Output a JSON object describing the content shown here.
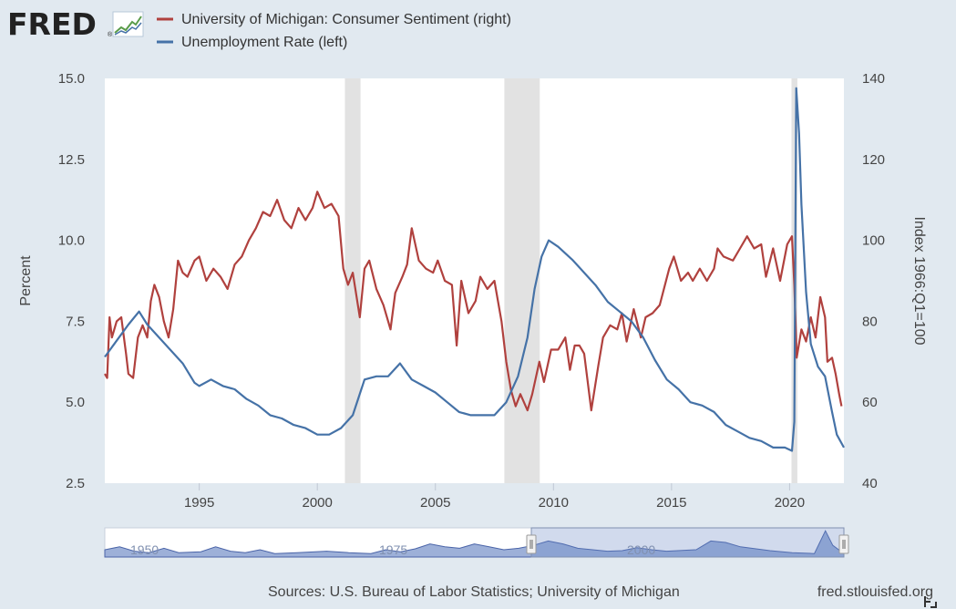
{
  "brand": {
    "name": "FRED",
    "registered": "®"
  },
  "legend": [
    {
      "label": "University of Michigan: Consumer Sentiment (right)",
      "color": "#b0413e"
    },
    {
      "label": "Unemployment Rate (left)",
      "color": "#4572a7"
    }
  ],
  "footer": {
    "sources": "Sources: U.S. Bureau of Labor Statistics; University of Michigan",
    "site": "fred.stlouisfed.org"
  },
  "navigator": {
    "labels": [
      "1950",
      "1975",
      "2000"
    ]
  },
  "chart_data": {
    "type": "line",
    "title": "",
    "x_range": [
      1991.0,
      2022.3
    ],
    "x_ticks": [
      "1995",
      "2000",
      "2005",
      "2010",
      "2015",
      "2020"
    ],
    "y_left": {
      "label": "Percent",
      "range": [
        2.5,
        15.0
      ],
      "ticks": [
        "2.5",
        "5.0",
        "7.5",
        "10.0",
        "12.5",
        "15.0"
      ]
    },
    "y_right": {
      "label": "Index 1966:Q1=100",
      "range": [
        40,
        140
      ],
      "ticks": [
        "40",
        "60",
        "80",
        "100",
        "120",
        "140"
      ]
    },
    "grid": false,
    "legend_position": "top-left",
    "recessions": [
      [
        2001.17,
        2001.83
      ],
      [
        2007.92,
        2009.42
      ],
      [
        2020.08,
        2020.33
      ]
    ],
    "series": [
      {
        "name": "University of Michigan: Consumer Sentiment (right)",
        "axis": "right",
        "color": "#b0413e",
        "points": [
          [
            1991.0,
            67
          ],
          [
            1991.1,
            66
          ],
          [
            1991.2,
            81
          ],
          [
            1991.3,
            76
          ],
          [
            1991.5,
            80
          ],
          [
            1991.7,
            81
          ],
          [
            1991.9,
            72
          ],
          [
            1992.0,
            67
          ],
          [
            1992.2,
            66
          ],
          [
            1992.4,
            76
          ],
          [
            1992.6,
            79
          ],
          [
            1992.8,
            76
          ],
          [
            1992.95,
            85
          ],
          [
            1993.1,
            89
          ],
          [
            1993.3,
            86
          ],
          [
            1993.5,
            80
          ],
          [
            1993.7,
            76
          ],
          [
            1993.9,
            83
          ],
          [
            1994.1,
            95
          ],
          [
            1994.3,
            92
          ],
          [
            1994.5,
            91
          ],
          [
            1994.8,
            95
          ],
          [
            1995.0,
            96
          ],
          [
            1995.3,
            90
          ],
          [
            1995.6,
            93
          ],
          [
            1995.9,
            91
          ],
          [
            1996.2,
            88
          ],
          [
            1996.5,
            94
          ],
          [
            1996.8,
            96
          ],
          [
            1997.1,
            100
          ],
          [
            1997.4,
            103
          ],
          [
            1997.7,
            107
          ],
          [
            1998.0,
            106
          ],
          [
            1998.3,
            110
          ],
          [
            1998.6,
            105
          ],
          [
            1998.9,
            103
          ],
          [
            1999.2,
            108
          ],
          [
            1999.5,
            105
          ],
          [
            1999.8,
            108
          ],
          [
            2000.0,
            112
          ],
          [
            2000.3,
            108
          ],
          [
            2000.6,
            109
          ],
          [
            2000.9,
            106
          ],
          [
            2001.1,
            93
          ],
          [
            2001.3,
            89
          ],
          [
            2001.5,
            92
          ],
          [
            2001.8,
            81
          ],
          [
            2002.0,
            93
          ],
          [
            2002.2,
            95
          ],
          [
            2002.5,
            88
          ],
          [
            2002.8,
            84
          ],
          [
            2003.1,
            78
          ],
          [
            2003.3,
            87
          ],
          [
            2003.6,
            91
          ],
          [
            2003.8,
            94
          ],
          [
            2004.0,
            103
          ],
          [
            2004.3,
            95
          ],
          [
            2004.6,
            93
          ],
          [
            2004.9,
            92
          ],
          [
            2005.1,
            95
          ],
          [
            2005.4,
            90
          ],
          [
            2005.7,
            89
          ],
          [
            2005.9,
            74
          ],
          [
            2006.1,
            90
          ],
          [
            2006.4,
            82
          ],
          [
            2006.7,
            85
          ],
          [
            2006.9,
            91
          ],
          [
            2007.2,
            88
          ],
          [
            2007.5,
            90
          ],
          [
            2007.8,
            80
          ],
          [
            2008.0,
            70
          ],
          [
            2008.2,
            63
          ],
          [
            2008.4,
            59
          ],
          [
            2008.6,
            62
          ],
          [
            2008.9,
            58
          ],
          [
            2009.1,
            62
          ],
          [
            2009.4,
            70
          ],
          [
            2009.6,
            65
          ],
          [
            2009.9,
            73
          ],
          [
            2010.2,
            73
          ],
          [
            2010.5,
            76
          ],
          [
            2010.7,
            68
          ],
          [
            2010.9,
            74
          ],
          [
            2011.1,
            74
          ],
          [
            2011.3,
            72
          ],
          [
            2011.6,
            58
          ],
          [
            2011.9,
            69
          ],
          [
            2012.1,
            76
          ],
          [
            2012.4,
            79
          ],
          [
            2012.7,
            78
          ],
          [
            2012.9,
            82
          ],
          [
            2013.1,
            75
          ],
          [
            2013.4,
            83
          ],
          [
            2013.7,
            76
          ],
          [
            2013.9,
            81
          ],
          [
            2014.2,
            82
          ],
          [
            2014.5,
            84
          ],
          [
            2014.9,
            93
          ],
          [
            2015.1,
            96
          ],
          [
            2015.4,
            90
          ],
          [
            2015.7,
            92
          ],
          [
            2015.9,
            90
          ],
          [
            2016.2,
            93
          ],
          [
            2016.5,
            90
          ],
          [
            2016.8,
            93
          ],
          [
            2016.95,
            98
          ],
          [
            2017.2,
            96
          ],
          [
            2017.6,
            95
          ],
          [
            2017.9,
            98
          ],
          [
            2018.2,
            101
          ],
          [
            2018.5,
            98
          ],
          [
            2018.8,
            99
          ],
          [
            2019.0,
            91
          ],
          [
            2019.3,
            98
          ],
          [
            2019.6,
            90
          ],
          [
            2019.9,
            99
          ],
          [
            2020.1,
            101
          ],
          [
            2020.2,
            89
          ],
          [
            2020.3,
            71
          ],
          [
            2020.5,
            78
          ],
          [
            2020.7,
            75
          ],
          [
            2020.9,
            81
          ],
          [
            2021.1,
            76
          ],
          [
            2021.3,
            86
          ],
          [
            2021.5,
            81
          ],
          [
            2021.6,
            70
          ],
          [
            2021.8,
            71
          ],
          [
            2021.95,
            67
          ],
          [
            2022.1,
            62
          ],
          [
            2022.2,
            59
          ]
        ]
      },
      {
        "name": "Unemployment Rate (left)",
        "axis": "left",
        "color": "#4572a7",
        "points": [
          [
            1991.0,
            6.4
          ],
          [
            1991.5,
            6.9
          ],
          [
            1992.0,
            7.4
          ],
          [
            1992.45,
            7.8
          ],
          [
            1992.8,
            7.4
          ],
          [
            1993.3,
            7.0
          ],
          [
            1993.8,
            6.6
          ],
          [
            1994.3,
            6.2
          ],
          [
            1994.8,
            5.6
          ],
          [
            1995.0,
            5.5
          ],
          [
            1995.5,
            5.7
          ],
          [
            1996.0,
            5.5
          ],
          [
            1996.5,
            5.4
          ],
          [
            1997.0,
            5.1
          ],
          [
            1997.5,
            4.9
          ],
          [
            1998.0,
            4.6
          ],
          [
            1998.5,
            4.5
          ],
          [
            1999.0,
            4.3
          ],
          [
            1999.5,
            4.2
          ],
          [
            2000.0,
            4.0
          ],
          [
            2000.5,
            4.0
          ],
          [
            2001.0,
            4.2
          ],
          [
            2001.5,
            4.6
          ],
          [
            2002.0,
            5.7
          ],
          [
            2002.5,
            5.8
          ],
          [
            2003.0,
            5.8
          ],
          [
            2003.5,
            6.2
          ],
          [
            2004.0,
            5.7
          ],
          [
            2004.5,
            5.5
          ],
          [
            2005.0,
            5.3
          ],
          [
            2005.5,
            5.0
          ],
          [
            2006.0,
            4.7
          ],
          [
            2006.5,
            4.6
          ],
          [
            2007.0,
            4.6
          ],
          [
            2007.5,
            4.6
          ],
          [
            2008.0,
            5.0
          ],
          [
            2008.5,
            5.8
          ],
          [
            2008.9,
            7.0
          ],
          [
            2009.2,
            8.5
          ],
          [
            2009.5,
            9.5
          ],
          [
            2009.8,
            10.0
          ],
          [
            2010.2,
            9.8
          ],
          [
            2010.8,
            9.4
          ],
          [
            2011.3,
            9.0
          ],
          [
            2011.8,
            8.6
          ],
          [
            2012.3,
            8.1
          ],
          [
            2012.8,
            7.8
          ],
          [
            2013.3,
            7.5
          ],
          [
            2013.8,
            7.0
          ],
          [
            2014.3,
            6.3
          ],
          [
            2014.8,
            5.7
          ],
          [
            2015.3,
            5.4
          ],
          [
            2015.8,
            5.0
          ],
          [
            2016.3,
            4.9
          ],
          [
            2016.8,
            4.7
          ],
          [
            2017.3,
            4.3
          ],
          [
            2017.8,
            4.1
          ],
          [
            2018.3,
            3.9
          ],
          [
            2018.8,
            3.8
          ],
          [
            2019.3,
            3.6
          ],
          [
            2019.8,
            3.6
          ],
          [
            2020.1,
            3.5
          ],
          [
            2020.2,
            4.4
          ],
          [
            2020.28,
            14.7
          ],
          [
            2020.4,
            13.3
          ],
          [
            2020.5,
            11.1
          ],
          [
            2020.7,
            8.4
          ],
          [
            2020.9,
            6.8
          ],
          [
            2021.2,
            6.1
          ],
          [
            2021.5,
            5.8
          ],
          [
            2021.8,
            4.7
          ],
          [
            2022.0,
            4.0
          ],
          [
            2022.3,
            3.6
          ]
        ]
      }
    ]
  }
}
